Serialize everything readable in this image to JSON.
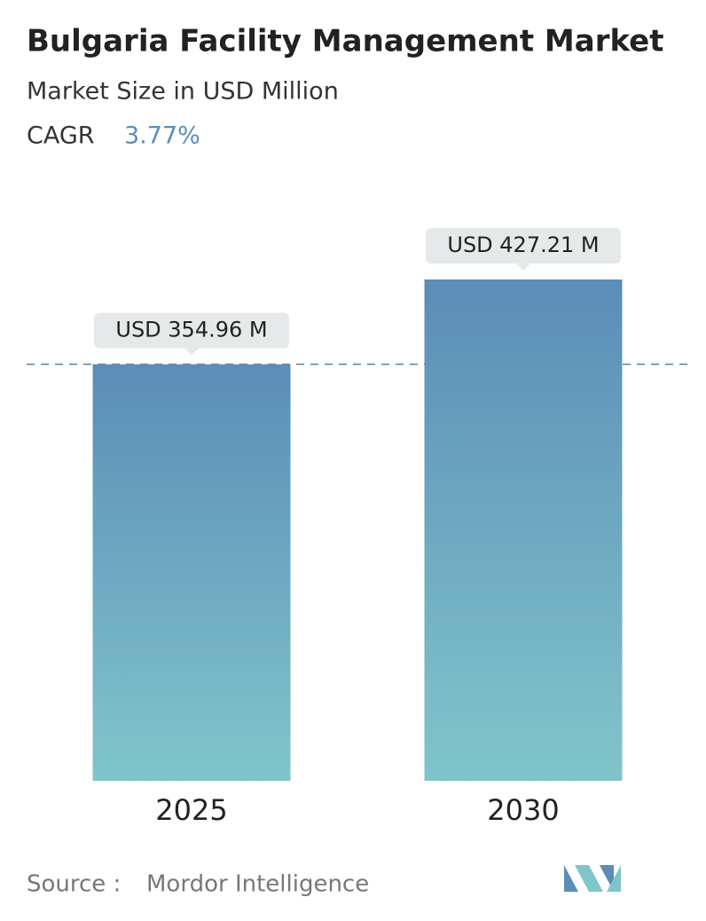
{
  "chart_data": {
    "type": "bar",
    "title": "Bulgaria Facility Management Market",
    "subtitle": "Market Size in USD Million",
    "cagr_label": "CAGR",
    "cagr_value": "3.77%",
    "categories": [
      "2025",
      "2030"
    ],
    "values": [
      354.96,
      427.21
    ],
    "value_labels": [
      "USD 354.96 M",
      "USD 427.21 M"
    ],
    "color": [
      "#5b8db8",
      "#80c5ca"
    ],
    "source_label": "Source :",
    "source": "Mordor Intelligence"
  }
}
